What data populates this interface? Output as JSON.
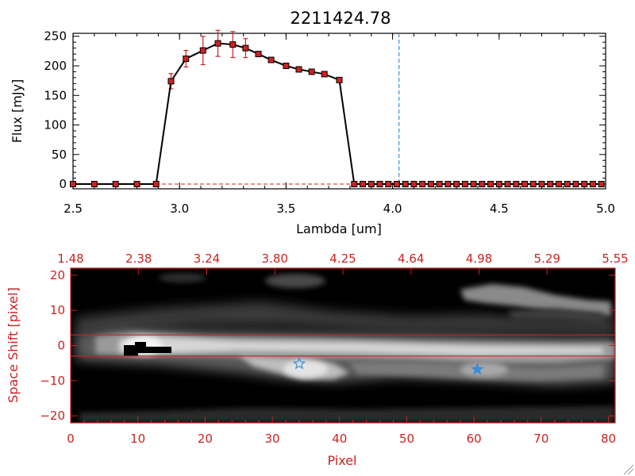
{
  "chart_data": [
    {
      "type": "line",
      "title": "2211424.78",
      "xlabel": "Lambda [um]",
      "ylabel": "Flux [mJy]",
      "xlim": [
        2.5,
        5.0
      ],
      "ylim": [
        -8,
        255
      ],
      "x_ticks": [
        2.5,
        3.0,
        3.5,
        4.0,
        4.5,
        5.0
      ],
      "x_tick_labels": [
        "2.5",
        "3.0",
        "3.5",
        "4.0",
        "4.5",
        "5.0"
      ],
      "y_ticks": [
        0,
        50,
        100,
        150,
        200,
        250
      ],
      "y_tick_labels": [
        "0",
        "50",
        "100",
        "150",
        "200",
        "250"
      ],
      "grid": false,
      "vline_x": 4.03,
      "colors": {
        "line": "#000000",
        "marker": "#cc2222",
        "error": "#cc2222",
        "vline": "#3b8fd6",
        "zero_line": "#cc2222"
      },
      "x": [
        2.5,
        2.6,
        2.7,
        2.8,
        2.89,
        2.96,
        3.03,
        3.11,
        3.18,
        3.25,
        3.31,
        3.37,
        3.43,
        3.5,
        3.56,
        3.62,
        3.68,
        3.75,
        3.82,
        3.86,
        3.9,
        3.94,
        3.98,
        4.02,
        4.06,
        4.1,
        4.14,
        4.18,
        4.22,
        4.26,
        4.3,
        4.34,
        4.38,
        4.42,
        4.46,
        4.5,
        4.54,
        4.58,
        4.62,
        4.66,
        4.7,
        4.74,
        4.78,
        4.82,
        4.86,
        4.9,
        4.94,
        4.98
      ],
      "y": [
        0,
        0,
        0,
        0,
        0,
        174,
        212,
        226,
        238,
        236,
        230,
        220,
        210,
        200,
        194,
        190,
        186,
        176,
        0,
        0,
        0,
        0,
        0,
        0,
        0,
        0,
        0,
        0,
        0,
        0,
        0,
        0,
        0,
        0,
        0,
        0,
        0,
        0,
        0,
        0,
        0,
        0,
        0,
        0,
        0,
        0,
        0,
        0
      ],
      "y_err": [
        0,
        0,
        0,
        0,
        0,
        13,
        14,
        24,
        22,
        22,
        16,
        4,
        4,
        4,
        4,
        4,
        4,
        4,
        0,
        0,
        0,
        0,
        0,
        0,
        0,
        0,
        0,
        0,
        0,
        0,
        0,
        0,
        0,
        0,
        0,
        0,
        0,
        0,
        0,
        0,
        0,
        0,
        0,
        0,
        0,
        0,
        0,
        0
      ]
    },
    {
      "type": "heatmap",
      "xlabel": "Pixel",
      "ylabel": "Space Shift [pixel]",
      "xlim": [
        0,
        81
      ],
      "ylim": [
        -22,
        22
      ],
      "x_ticks": [
        0,
        10,
        20,
        30,
        40,
        50,
        60,
        70,
        80
      ],
      "x_tick_labels": [
        "0",
        "10",
        "20",
        "30",
        "40",
        "50",
        "60",
        "70",
        "80"
      ],
      "y_ticks": [
        -20,
        -10,
        0,
        10,
        20
      ],
      "y_tick_labels": [
        "−20",
        "−10",
        "0",
        "10",
        "20"
      ],
      "top_axis_labels": [
        "1.48",
        "2.38",
        "3.24",
        "3.80",
        "4.25",
        "4.64",
        "4.98",
        "5.29",
        "5.55"
      ],
      "extraction_lines_y": [
        3,
        -3
      ],
      "star_markers": [
        {
          "x": 34,
          "y": -5.2,
          "filled": false
        },
        {
          "x": 60.5,
          "y": -6.8,
          "filled": true
        }
      ],
      "colors": {
        "axes": "#cc2222",
        "star": "#3b8fd6"
      }
    }
  ]
}
